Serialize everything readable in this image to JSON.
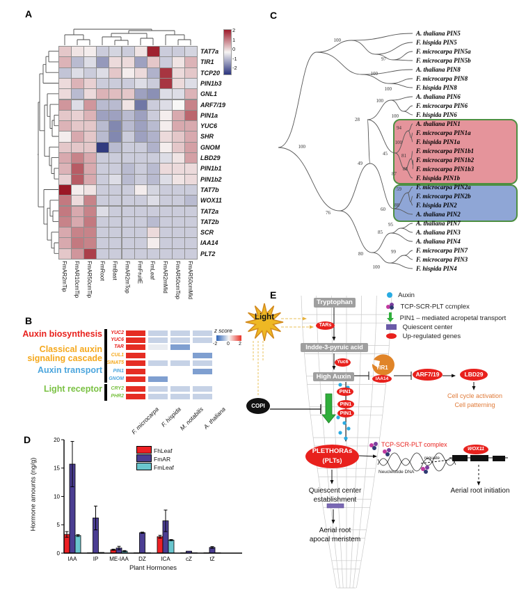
{
  "panel_a": {
    "label": "A",
    "colorbar_ticks": [
      "2",
      "1",
      "0",
      "-1",
      "-2"
    ]
  },
  "panel_b": {
    "label": "B"
  },
  "panel_c": {
    "label": "C",
    "tips": [
      "A. thaliana PIN5",
      "F. hispida PIN5",
      "F. microcarpa PIN5a",
      "F. microcarpa PIN5b",
      "A. thaliana PIN8",
      "F. microcarpa PIN8",
      "F. hispida PIN8",
      "A. thaliana PIN6",
      "F. microcarpa PIN6",
      "F. hispida PIN6",
      "A. thaliana PIN1",
      "F. microcarpa PIN1a",
      "F. hispida PIN1a",
      "F. microcarpa PIN1b1",
      "F. microcarpa  PIN1b2",
      "F. microcarpa PIN1b3",
      "F. hispida PIN1b",
      "F. microcarpa PIN2a",
      "F. microcarpa PIN2b",
      "F. hispida PIN2",
      "A. thaliana PIN2",
      "A. thaliana PIN7",
      "A. thaliana PIN3",
      "A. thaliana PIN4",
      "F. microcarpa PIN7",
      "F. microcarpa PIN3",
      "F. hispida PIN4"
    ],
    "bootstraps": [
      "100",
      "97",
      "100",
      "100",
      "100",
      "100",
      "28",
      "94",
      "100",
      "45",
      "81",
      "88",
      "87",
      "59",
      "88",
      "60",
      "49",
      "100",
      "76",
      "95",
      "85",
      "80",
      "99",
      "100"
    ],
    "highlight": {
      "pin1_fill": "#e5949b",
      "pin2_fill": "#8fa6d6",
      "border": "#4d8f41"
    }
  },
  "panel_d": {
    "label": "D"
  },
  "panel_e": {
    "label": "E",
    "labels": {
      "light": "Light",
      "tryptophan": "Tryptophan",
      "ipa": "Indde-3-pyruic acid",
      "high_auxin": "High Auxin",
      "tars": "TARs",
      "yuc6": "Yuc6",
      "pin1": "PIN1",
      "copi": "COPI",
      "tir1": "TIR1",
      "iaa14": "IAA14",
      "arf": "ARF7/19",
      "lbd29": "LBD29",
      "cell_cycle_1": "Cell cycle activation",
      "cell_cycle_2": "Cell patterning",
      "plethoras_1": "PLETHORAs",
      "plethoras_2": "(PLTs)",
      "tcp_red": "TCP-SCR-PLT complex",
      "dna": "Neucleiotide DNA",
      "regulate": "reguate",
      "wox11": "WOX11",
      "aerial_initiation": "Aerial root initiation",
      "qc_1": "Quiescent center",
      "qc_2": "establishment",
      "arm_1": "Aerial root",
      "arm_2": "apocal meristem"
    },
    "legend": [
      {
        "icon": "auxin-dot",
        "label": "Auxin"
      },
      {
        "icon": "tcp-complex",
        "label": "TCP-SCR-PLT ccmplex"
      },
      {
        "icon": "green-arrow",
        "label": "PIN1 – mediated acropetal transport"
      },
      {
        "icon": "qc-rect",
        "label": "Quiescent center"
      },
      {
        "icon": "red-ellipse",
        "label": "Up-regulated genes"
      }
    ]
  },
  "chart_data": [
    {
      "id": "heatmap_a",
      "type": "heatmap",
      "rows": [
        "TAT7a",
        "TIR1",
        "TCP20",
        "PIN1b3",
        "GNL1",
        "ARF7/19",
        "PIN1a",
        "YUC6",
        "SHR",
        "GNOM",
        "LBD29",
        "PIN1b1",
        "PIN1b2",
        "TAT7b",
        "WOX11",
        "TAT2a",
        "TAT2b",
        "SCR",
        "IAA14",
        "PLT2"
      ],
      "cols": [
        "FmAR2mTip",
        "FmAR10cmTip",
        "FmAR50cmTip",
        "FmRoot",
        "FmBast",
        "FmAR2mTop",
        "FmFruitE",
        "FmLeaf",
        "FmAR2mMid",
        "FmAR50cmTop",
        "FmAR50cmMid"
      ],
      "zlim": [
        -2.3,
        2.3
      ],
      "colorbar_ticks": [
        "2",
        "1",
        "0",
        "-1",
        "-2"
      ],
      "values": [
        [
          0.5,
          0.2,
          0.1,
          -0.5,
          -0.4,
          -0.5,
          0.2,
          2.2,
          -0.5,
          -0.5,
          -0.4
        ],
        [
          0.7,
          -0.7,
          -0.3,
          -1.1,
          0.3,
          0.3,
          -1.0,
          0.5,
          -0.5,
          0.2,
          0.7
        ],
        [
          -0.6,
          -0.3,
          -0.5,
          -0.3,
          0.5,
          0.1,
          0.3,
          -0.8,
          2.0,
          0.3,
          0.5
        ],
        [
          0.3,
          0.7,
          0.4,
          -0.5,
          -0.5,
          -0.5,
          -0.3,
          -0.5,
          2.0,
          0.3,
          -0.3
        ],
        [
          0.3,
          -0.7,
          0.3,
          0.7,
          0.6,
          0.5,
          -1.0,
          -1.2,
          -0.3,
          -0.3,
          0.7
        ],
        [
          1.0,
          -0.3,
          1.0,
          -0.7,
          -0.7,
          0.2,
          -1.5,
          -0.5,
          -0.3,
          0.0,
          1.2
        ],
        [
          0.5,
          0.4,
          0.7,
          -1.0,
          -1.0,
          -0.7,
          -1.0,
          -0.5,
          0.1,
          0.8,
          1.5
        ],
        [
          0.7,
          0.5,
          0.5,
          -0.7,
          -1.3,
          -0.7,
          -1.0,
          -0.7,
          0.1,
          0.8,
          0.8
        ],
        [
          0.1,
          0.8,
          0.5,
          -0.7,
          -1.3,
          -0.5,
          -1.0,
          -0.8,
          0.3,
          0.5,
          0.8
        ],
        [
          0.5,
          0.5,
          0.5,
          -2.2,
          -0.7,
          -0.5,
          -0.5,
          -0.8,
          0.1,
          0.5,
          0.9
        ],
        [
          0.8,
          1.2,
          0.8,
          -0.5,
          -0.5,
          -0.5,
          -0.5,
          -0.5,
          -0.3,
          0.2,
          0.9
        ],
        [
          0.7,
          1.6,
          0.8,
          -0.5,
          -0.5,
          -0.7,
          -0.5,
          -0.7,
          0.3,
          0.3,
          0.3
        ],
        [
          0.4,
          1.6,
          0.8,
          -0.5,
          -0.3,
          -0.7,
          -0.5,
          -0.7,
          -0.3,
          0.2,
          0.3
        ],
        [
          2.3,
          0.1,
          0.2,
          -0.5,
          -0.5,
          -0.5,
          0.1,
          -0.4,
          -0.5,
          -0.5,
          -0.5
        ],
        [
          1.3,
          0.3,
          1.2,
          -0.5,
          -0.5,
          -0.5,
          -0.5,
          -0.3,
          -0.5,
          -0.5,
          -0.7
        ],
        [
          1.3,
          0.8,
          1.2,
          -0.3,
          -0.5,
          -0.5,
          -0.5,
          -0.5,
          -0.5,
          -0.5,
          -0.5
        ],
        [
          1.2,
          0.8,
          1.3,
          -0.5,
          -0.5,
          -0.5,
          -0.5,
          -0.7,
          -0.5,
          -0.5,
          -0.5
        ],
        [
          0.8,
          1.2,
          1.2,
          -0.5,
          -0.5,
          -0.5,
          -0.5,
          0.3,
          -0.5,
          -0.5,
          -0.5
        ],
        [
          0.8,
          1.3,
          1.2,
          -0.5,
          -0.5,
          -0.5,
          -0.5,
          0.1,
          -0.5,
          -0.5,
          -0.5
        ],
        [
          0.5,
          1.0,
          1.9,
          -0.5,
          -0.5,
          -0.5,
          -0.5,
          -0.5,
          -0.5,
          -0.5,
          -0.5
        ]
      ]
    },
    {
      "id": "heatmap_b",
      "type": "heatmap",
      "row_groups": [
        {
          "label_1": "Auxin biosynthesis",
          "label_2": "",
          "color": "#e8211d",
          "genes": [
            "YUC2",
            "YUC6",
            "TAR"
          ]
        },
        {
          "label_1": "Classical auxin",
          "label_2": "signaling cascade",
          "color": "#f5a81c",
          "genes": [
            "CUL1",
            "SINAT5"
          ]
        },
        {
          "label_1": "Auxin transport",
          "label_2": "",
          "color": "#4da6dd",
          "genes": [
            "PIN1",
            "GNOM"
          ]
        },
        {
          "label_1": "Light receptor",
          "label_2": "",
          "color": "#7ac143",
          "genes": [
            "CRY2",
            "PHR2"
          ]
        }
      ],
      "cols": [
        "F. microcarpa",
        "F. hispida",
        "M. notabilis",
        "A. thaliana"
      ],
      "legend_title": "z score",
      "legend_ticks": [
        "-2",
        "0",
        "2"
      ],
      "zlim": [
        -2,
        2
      ],
      "values": [
        [
          2,
          -0.5,
          -0.5,
          -0.5
        ],
        [
          2,
          -0.5,
          -0.5,
          -0.5
        ],
        [
          2,
          -0.15,
          -1.2,
          null
        ],
        [
          2,
          null,
          null,
          -1.2
        ],
        [
          2,
          -0.5,
          -0.5,
          -0.5
        ],
        [
          2,
          null,
          null,
          -1.2
        ],
        [
          2,
          -1.2,
          null,
          null
        ],
        [
          2,
          -0.5,
          -0.5,
          -0.5
        ],
        [
          2,
          -0.5,
          -0.5,
          -0.5
        ]
      ]
    },
    {
      "id": "bars_d",
      "type": "bar",
      "title": "",
      "categories": [
        "IAA",
        "IP",
        "ME-IAA",
        "DZ",
        "ICA",
        "cZ",
        "tZ"
      ],
      "series": [
        {
          "name": "FhLeaf",
          "color": "#ed2024",
          "values": [
            3.3,
            0.05,
            0.6,
            0,
            2.9,
            0,
            0.05
          ],
          "errors": [
            0.5,
            0,
            0.1,
            0,
            0.25,
            0,
            0
          ]
        },
        {
          "name": "FmAR",
          "color": "#4b3e92",
          "values": [
            15.7,
            6.2,
            0.9,
            3.6,
            5.7,
            0.35,
            1.0
          ],
          "errors": [
            4.0,
            2.1,
            0.3,
            0.1,
            1.9,
            0,
            0.15
          ]
        },
        {
          "name": "FmLeaf",
          "color": "#6ac6ce",
          "values": [
            3.1,
            0.12,
            0.35,
            0.02,
            2.3,
            0.02,
            0.02
          ],
          "errors": [
            0.15,
            0,
            0.1,
            0,
            0.1,
            0,
            0
          ]
        }
      ],
      "xlabel": "Plant Hormones",
      "ylabel": "Hormone amounts (ng/g)",
      "ylim": [
        0,
        20
      ],
      "yticks": [
        0,
        5,
        10,
        15,
        20
      ],
      "legend_position": "upper center"
    }
  ]
}
